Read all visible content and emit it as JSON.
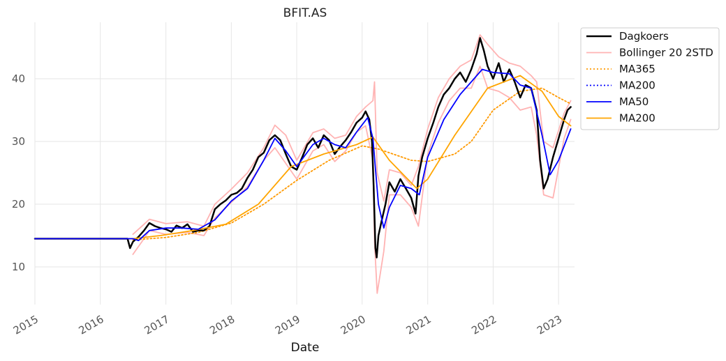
{
  "chart_data": {
    "type": "line",
    "title": "BFIT.AS",
    "xlabel": "Date",
    "ylabel": "",
    "ylim": [
      4,
      49
    ],
    "xlim": [
      "2015-01-01",
      "2023-03-31"
    ],
    "y_ticks": [
      10,
      20,
      30,
      40
    ],
    "x_ticks": [
      {
        "label": "2015",
        "date": "2015-01-01"
      },
      {
        "label": "2016",
        "date": "2016-01-01"
      },
      {
        "label": "2017",
        "date": "2017-01-01"
      },
      {
        "label": "2018",
        "date": "2018-01-01"
      },
      {
        "label": "2019",
        "date": "2019-01-01"
      },
      {
        "label": "2020",
        "date": "2020-01-01"
      },
      {
        "label": "2021",
        "date": "2021-01-01"
      },
      {
        "label": "2022",
        "date": "2022-01-01"
      },
      {
        "label": "2023",
        "date": "2023-01-01"
      }
    ],
    "grid": true,
    "legend_position": "outside-top-right",
    "series": [
      {
        "name": "Dagkoers",
        "color": "#000000",
        "style": "solid",
        "width": 2.5,
        "points": [
          [
            "2015-01-01",
            14.5
          ],
          [
            "2016-06-01",
            14.5
          ],
          [
            "2016-06-15",
            13.0
          ],
          [
            "2016-07-01",
            14.0
          ],
          [
            "2016-08-01",
            14.8
          ],
          [
            "2016-09-01",
            15.8
          ],
          [
            "2016-10-01",
            17.0
          ],
          [
            "2016-11-01",
            16.5
          ],
          [
            "2016-12-01",
            16.2
          ],
          [
            "2017-01-01",
            16.0
          ],
          [
            "2017-02-01",
            15.6
          ],
          [
            "2017-03-01",
            16.6
          ],
          [
            "2017-04-01",
            16.2
          ],
          [
            "2017-05-01",
            16.8
          ],
          [
            "2017-06-01",
            15.6
          ],
          [
            "2017-07-01",
            15.8
          ],
          [
            "2017-08-01",
            15.8
          ],
          [
            "2017-09-01",
            16.5
          ],
          [
            "2017-10-01",
            19.2
          ],
          [
            "2017-11-01",
            20.0
          ],
          [
            "2017-12-01",
            20.6
          ],
          [
            "2018-01-01",
            21.5
          ],
          [
            "2018-02-01",
            21.8
          ],
          [
            "2018-03-01",
            22.5
          ],
          [
            "2018-04-01",
            24.2
          ],
          [
            "2018-05-01",
            25.5
          ],
          [
            "2018-06-01",
            27.5
          ],
          [
            "2018-07-01",
            28.2
          ],
          [
            "2018-08-01",
            30.2
          ],
          [
            "2018-09-01",
            31.0
          ],
          [
            "2018-10-01",
            30.2
          ],
          [
            "2018-11-01",
            28.0
          ],
          [
            "2018-12-01",
            26.0
          ],
          [
            "2019-01-01",
            25.5
          ],
          [
            "2019-02-01",
            27.5
          ],
          [
            "2019-03-01",
            29.5
          ],
          [
            "2019-04-01",
            30.5
          ],
          [
            "2019-05-01",
            29.0
          ],
          [
            "2019-06-01",
            31.0
          ],
          [
            "2019-07-01",
            30.2
          ],
          [
            "2019-08-01",
            28.0
          ],
          [
            "2019-09-01",
            29.2
          ],
          [
            "2019-10-01",
            30.2
          ],
          [
            "2019-11-01",
            31.5
          ],
          [
            "2019-12-01",
            33.0
          ],
          [
            "2020-01-01",
            33.8
          ],
          [
            "2020-01-20",
            34.8
          ],
          [
            "2020-02-10",
            33.5
          ],
          [
            "2020-02-25",
            30.0
          ],
          [
            "2020-03-05",
            23.0
          ],
          [
            "2020-03-15",
            13.0
          ],
          [
            "2020-03-22",
            11.5
          ],
          [
            "2020-04-01",
            15.0
          ],
          [
            "2020-04-20",
            17.5
          ],
          [
            "2020-05-10",
            20.0
          ],
          [
            "2020-06-01",
            23.5
          ],
          [
            "2020-07-01",
            22.0
          ],
          [
            "2020-08-01",
            24.0
          ],
          [
            "2020-09-01",
            22.5
          ],
          [
            "2020-10-01",
            21.0
          ],
          [
            "2020-10-25",
            18.5
          ],
          [
            "2020-11-10",
            24.5
          ],
          [
            "2020-12-01",
            27.5
          ],
          [
            "2021-01-01",
            30.5
          ],
          [
            "2021-02-01",
            33.0
          ],
          [
            "2021-03-01",
            35.5
          ],
          [
            "2021-04-01",
            37.5
          ],
          [
            "2021-05-01",
            38.5
          ],
          [
            "2021-06-01",
            40.0
          ],
          [
            "2021-07-01",
            41.0
          ],
          [
            "2021-08-01",
            39.5
          ],
          [
            "2021-09-01",
            41.5
          ],
          [
            "2021-10-01",
            44.0
          ],
          [
            "2021-10-20",
            46.5
          ],
          [
            "2021-11-10",
            44.5
          ],
          [
            "2021-12-01",
            42.0
          ],
          [
            "2022-01-01",
            40.0
          ],
          [
            "2022-02-01",
            42.5
          ],
          [
            "2022-03-01",
            39.5
          ],
          [
            "2022-04-01",
            41.5
          ],
          [
            "2022-05-01",
            39.5
          ],
          [
            "2022-06-01",
            37.0
          ],
          [
            "2022-07-01",
            39.0
          ],
          [
            "2022-08-01",
            38.5
          ],
          [
            "2022-09-01",
            35.0
          ],
          [
            "2022-09-20",
            27.0
          ],
          [
            "2022-10-10",
            22.5
          ],
          [
            "2022-11-01",
            24.0
          ],
          [
            "2022-12-01",
            27.5
          ],
          [
            "2023-01-01",
            30.5
          ],
          [
            "2023-02-01",
            33.5
          ],
          [
            "2023-02-20",
            35.0
          ],
          [
            "2023-03-10",
            35.5
          ]
        ]
      },
      {
        "name": "Bollinger 20 2STD",
        "color": "#ffb3b3",
        "style": "solid",
        "width": 1.8,
        "points_upper": [
          [
            "2016-07-01",
            15.2
          ],
          [
            "2016-09-01",
            16.8
          ],
          [
            "2016-10-01",
            17.6
          ],
          [
            "2017-01-01",
            16.9
          ],
          [
            "2017-05-01",
            17.2
          ],
          [
            "2017-08-01",
            16.5
          ],
          [
            "2017-10-01",
            20.0
          ],
          [
            "2018-01-01",
            22.4
          ],
          [
            "2018-04-01",
            25.0
          ],
          [
            "2018-07-01",
            29.0
          ],
          [
            "2018-09-01",
            32.6
          ],
          [
            "2018-11-01",
            31.0
          ],
          [
            "2019-01-01",
            27.0
          ],
          [
            "2019-04-01",
            31.4
          ],
          [
            "2019-06-01",
            32.0
          ],
          [
            "2019-08-01",
            30.5
          ],
          [
            "2019-10-01",
            31.0
          ],
          [
            "2019-12-01",
            34.0
          ],
          [
            "2020-01-20",
            35.5
          ],
          [
            "2020-03-01",
            36.5
          ],
          [
            "2020-03-10",
            39.5
          ],
          [
            "2020-03-25",
            25.0
          ],
          [
            "2020-05-01",
            20.5
          ],
          [
            "2020-06-01",
            25.5
          ],
          [
            "2020-08-01",
            25.0
          ],
          [
            "2020-10-01",
            23.0
          ],
          [
            "2020-11-10",
            26.0
          ],
          [
            "2021-01-01",
            32.0
          ],
          [
            "2021-03-01",
            37.0
          ],
          [
            "2021-05-01",
            40.0
          ],
          [
            "2021-07-01",
            42.0
          ],
          [
            "2021-09-01",
            43.0
          ],
          [
            "2021-10-20",
            47.0
          ],
          [
            "2021-12-01",
            45.5
          ],
          [
            "2022-02-01",
            43.5
          ],
          [
            "2022-04-01",
            42.5
          ],
          [
            "2022-06-01",
            42.0
          ],
          [
            "2022-08-01",
            40.5
          ],
          [
            "2022-09-01",
            39.5
          ],
          [
            "2022-10-10",
            30.0
          ],
          [
            "2022-12-01",
            29.0
          ],
          [
            "2023-02-01",
            34.5
          ],
          [
            "2023-03-10",
            36.5
          ]
        ],
        "points_lower": [
          [
            "2016-07-01",
            12.0
          ],
          [
            "2016-09-01",
            14.5
          ],
          [
            "2016-10-01",
            15.8
          ],
          [
            "2017-01-01",
            15.2
          ],
          [
            "2017-05-01",
            15.5
          ],
          [
            "2017-08-01",
            15.0
          ],
          [
            "2017-10-01",
            17.8
          ],
          [
            "2018-01-01",
            20.3
          ],
          [
            "2018-04-01",
            22.8
          ],
          [
            "2018-07-01",
            27.0
          ],
          [
            "2018-09-01",
            29.0
          ],
          [
            "2018-11-01",
            26.5
          ],
          [
            "2019-01-01",
            24.0
          ],
          [
            "2019-04-01",
            28.5
          ],
          [
            "2019-06-01",
            29.5
          ],
          [
            "2019-08-01",
            26.8
          ],
          [
            "2019-10-01",
            28.5
          ],
          [
            "2019-12-01",
            31.5
          ],
          [
            "2020-01-20",
            32.5
          ],
          [
            "2020-03-01",
            27.0
          ],
          [
            "2020-03-10",
            14.0
          ],
          [
            "2020-03-25",
            5.8
          ],
          [
            "2020-05-01",
            12.5
          ],
          [
            "2020-06-01",
            21.5
          ],
          [
            "2020-08-01",
            21.5
          ],
          [
            "2020-10-01",
            19.5
          ],
          [
            "2020-11-10",
            16.5
          ],
          [
            "2021-01-01",
            28.0
          ],
          [
            "2021-03-01",
            33.0
          ],
          [
            "2021-05-01",
            36.5
          ],
          [
            "2021-07-01",
            38.5
          ],
          [
            "2021-09-01",
            38.5
          ],
          [
            "2021-10-20",
            42.0
          ],
          [
            "2021-12-01",
            38.5
          ],
          [
            "2022-02-01",
            38.0
          ],
          [
            "2022-04-01",
            37.0
          ],
          [
            "2022-06-01",
            35.0
          ],
          [
            "2022-08-01",
            35.5
          ],
          [
            "2022-09-01",
            31.0
          ],
          [
            "2022-10-10",
            21.5
          ],
          [
            "2022-12-01",
            21.0
          ],
          [
            "2023-02-01",
            30.5
          ],
          [
            "2023-03-10",
            33.5
          ]
        ]
      },
      {
        "name": "MA365",
        "color": "#ff9900",
        "style": "dotted",
        "width": 1.8,
        "points": [
          [
            "2016-07-01",
            14.3
          ],
          [
            "2017-01-01",
            14.7
          ],
          [
            "2017-07-01",
            15.5
          ],
          [
            "2018-01-01",
            17.0
          ],
          [
            "2018-07-01",
            20.0
          ],
          [
            "2019-01-01",
            23.8
          ],
          [
            "2019-07-01",
            27.0
          ],
          [
            "2020-01-01",
            29.3
          ],
          [
            "2020-04-01",
            28.8
          ],
          [
            "2020-10-01",
            27.0
          ],
          [
            "2021-01-01",
            26.8
          ],
          [
            "2021-06-01",
            28.0
          ],
          [
            "2021-09-01",
            30.0
          ],
          [
            "2022-01-01",
            35.0
          ],
          [
            "2022-06-01",
            38.0
          ],
          [
            "2022-10-01",
            38.5
          ],
          [
            "2023-01-01",
            37.0
          ],
          [
            "2023-03-10",
            36.0
          ]
        ]
      },
      {
        "name": "MA200",
        "color": "#0000ff",
        "style": "dotted",
        "width": 1.8,
        "points": [
          [
            "2015-01-01",
            14.5
          ],
          [
            "2015-10-01",
            14.5
          ]
        ]
      },
      {
        "name": "MA50",
        "color": "#0000ff",
        "style": "solid",
        "width": 1.8,
        "points": [
          [
            "2015-01-01",
            14.5
          ],
          [
            "2016-07-01",
            14.5
          ],
          [
            "2016-08-01",
            14.2
          ],
          [
            "2016-10-01",
            15.8
          ],
          [
            "2017-01-01",
            16.2
          ],
          [
            "2017-04-01",
            16.2
          ],
          [
            "2017-07-01",
            16.0
          ],
          [
            "2017-10-01",
            17.5
          ],
          [
            "2018-01-01",
            20.5
          ],
          [
            "2018-04-01",
            22.5
          ],
          [
            "2018-07-01",
            27.0
          ],
          [
            "2018-09-01",
            30.5
          ],
          [
            "2018-11-01",
            28.5
          ],
          [
            "2019-01-01",
            26.0
          ],
          [
            "2019-04-01",
            29.5
          ],
          [
            "2019-06-01",
            30.5
          ],
          [
            "2019-08-01",
            29.5
          ],
          [
            "2019-10-01",
            29.0
          ],
          [
            "2019-12-01",
            31.5
          ],
          [
            "2020-02-01",
            33.8
          ],
          [
            "2020-03-01",
            30.5
          ],
          [
            "2020-04-01",
            20.0
          ],
          [
            "2020-05-01",
            16.2
          ],
          [
            "2020-06-01",
            19.5
          ],
          [
            "2020-08-01",
            23.0
          ],
          [
            "2020-10-01",
            22.5
          ],
          [
            "2020-11-15",
            21.5
          ],
          [
            "2021-01-01",
            27.5
          ],
          [
            "2021-04-01",
            33.5
          ],
          [
            "2021-07-01",
            37.5
          ],
          [
            "2021-09-01",
            39.5
          ],
          [
            "2021-11-01",
            41.5
          ],
          [
            "2022-01-01",
            41.0
          ],
          [
            "2022-04-01",
            40.8
          ],
          [
            "2022-06-01",
            39.0
          ],
          [
            "2022-08-01",
            38.5
          ],
          [
            "2022-10-01",
            31.0
          ],
          [
            "2022-11-15",
            24.7
          ],
          [
            "2023-01-01",
            27.0
          ],
          [
            "2023-03-10",
            32.0
          ]
        ]
      },
      {
        "name": "MA200",
        "color": "#ffa500",
        "style": "solid",
        "width": 1.8,
        "points": [
          [
            "2015-01-01",
            14.5
          ],
          [
            "2016-07-01",
            14.5
          ],
          [
            "2016-12-01",
            15.0
          ],
          [
            "2017-06-01",
            15.8
          ],
          [
            "2017-12-01",
            16.8
          ],
          [
            "2018-06-01",
            20.0
          ],
          [
            "2018-12-01",
            26.0
          ],
          [
            "2019-06-01",
            28.0
          ],
          [
            "2019-12-01",
            29.5
          ],
          [
            "2020-03-01",
            30.7
          ],
          [
            "2020-06-01",
            27.0
          ],
          [
            "2020-11-01",
            22.5
          ],
          [
            "2021-01-01",
            24.0
          ],
          [
            "2021-06-01",
            31.0
          ],
          [
            "2021-12-01",
            38.5
          ],
          [
            "2022-06-01",
            40.5
          ],
          [
            "2022-10-01",
            38.0
          ],
          [
            "2023-01-01",
            34.0
          ],
          [
            "2023-03-10",
            32.5
          ]
        ]
      }
    ]
  }
}
